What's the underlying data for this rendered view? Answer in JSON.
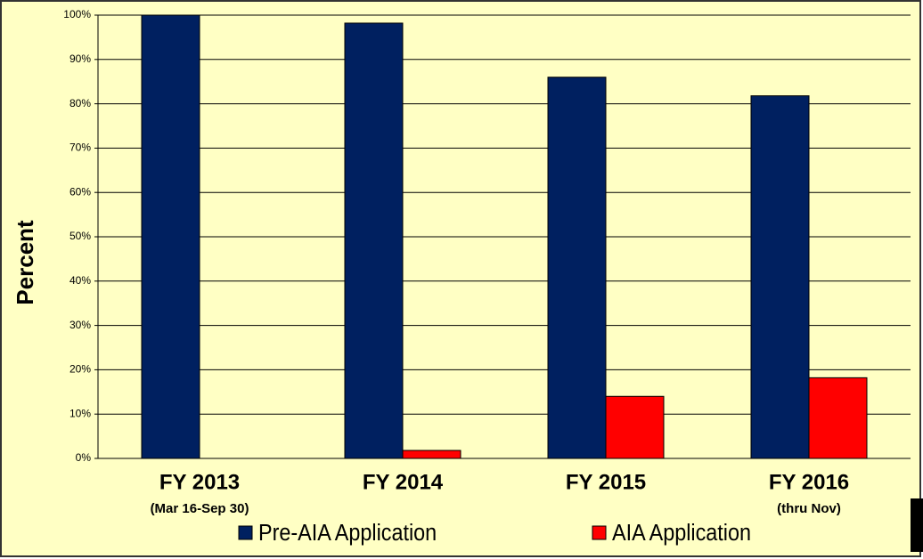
{
  "chart_data": {
    "type": "bar",
    "y_label": "Percent",
    "categories": [
      "FY 2013",
      "FY 2014",
      "FY 2015",
      "FY 2016"
    ],
    "category_notes": [
      "(Mar 16-Sep 30)",
      null,
      null,
      "(thru Nov)"
    ],
    "series": [
      {
        "name": "Pre-AIA Application",
        "color": "#002060",
        "values": [
          100,
          98.2,
          86,
          81.8
        ]
      },
      {
        "name": "AIA Application",
        "color": "#ff0000",
        "values": [
          0,
          1.8,
          14,
          18.2
        ]
      }
    ],
    "ylim": [
      0,
      100
    ],
    "yticks": [
      {
        "value": 0,
        "label": "0%"
      },
      {
        "value": 10,
        "label": "10%"
      },
      {
        "value": 20,
        "label": "20%"
      },
      {
        "value": 30,
        "label": "30%"
      },
      {
        "value": 40,
        "label": "40%"
      },
      {
        "value": 50,
        "label": "50%"
      },
      {
        "value": 60,
        "label": "60%"
      },
      {
        "value": 70,
        "label": "70%"
      },
      {
        "value": 80,
        "label": "80%"
      },
      {
        "value": 90,
        "label": "90%"
      },
      {
        "value": 100,
        "label": "100%"
      }
    ],
    "grid": true
  }
}
